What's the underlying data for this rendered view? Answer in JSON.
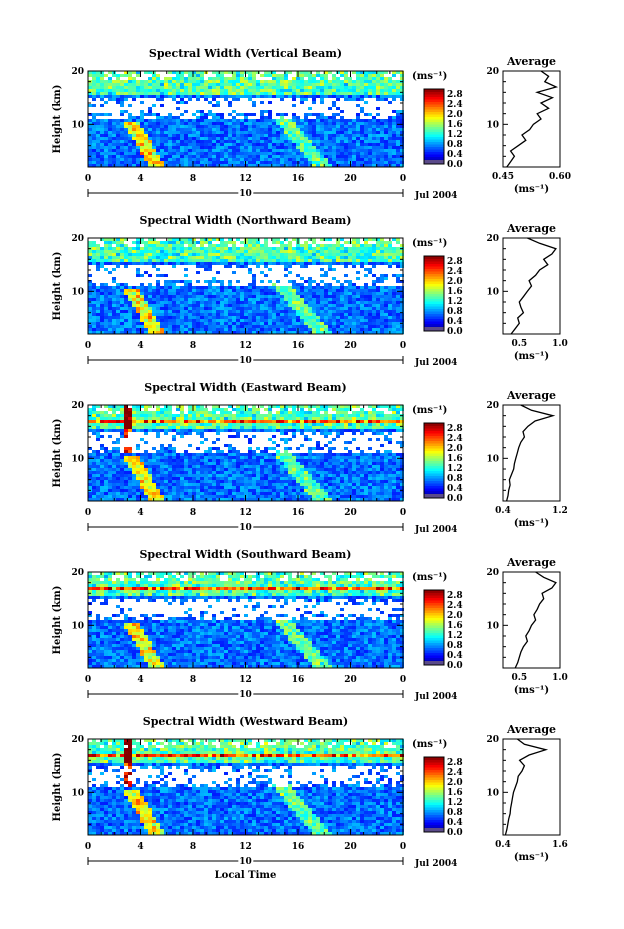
{
  "shared": {
    "ylabel": "Height (km)",
    "xlabel": "Local Time",
    "day_label": "10",
    "date_label": "Jul 2004",
    "units_label": "(ms⁻¹)",
    "avg_title": "Average",
    "avg_xlabel": "(ms⁻¹)",
    "x_ticks": [
      "0",
      "4",
      "8",
      "12",
      "16",
      "20",
      "0"
    ],
    "y_ticks": [
      "10",
      "20"
    ],
    "colorbar_ticks": [
      "0.0",
      "0.4",
      "0.8",
      "1.2",
      "1.6",
      "2.0",
      "2.4",
      "2.8"
    ]
  },
  "chart_data": [
    {
      "type": "heatmap",
      "title": "Spectral Width (Vertical Beam)",
      "x_range_hours": [
        0,
        24
      ],
      "y_range_km": [
        2,
        20
      ],
      "color_range": [
        0.0,
        3.0
      ],
      "avg_xlim": [
        0.45,
        0.6
      ],
      "avg_ticks": [
        "0.45",
        "0.60"
      ],
      "avg_profile": {
        "height_km": [
          2,
          3,
          4,
          5,
          6,
          7,
          8,
          9,
          10,
          11,
          12,
          13,
          14,
          15,
          16,
          17,
          18,
          19,
          20
        ],
        "value": [
          0.46,
          0.47,
          0.48,
          0.47,
          0.49,
          0.51,
          0.5,
          0.52,
          0.53,
          0.55,
          0.54,
          0.57,
          0.55,
          0.58,
          0.54,
          0.59,
          0.56,
          0.57,
          0.55
        ]
      }
    },
    {
      "type": "heatmap",
      "title": "Spectral Width (Northward Beam)",
      "x_range_hours": [
        0,
        24
      ],
      "y_range_km": [
        2,
        20
      ],
      "color_range": [
        0.0,
        3.0
      ],
      "avg_xlim": [
        0.3,
        1.0
      ],
      "avg_ticks": [
        "0.5",
        "1.0"
      ],
      "avg_profile": {
        "height_km": [
          2,
          3,
          4,
          5,
          6,
          7,
          8,
          9,
          10,
          11,
          12,
          13,
          14,
          15,
          16,
          17,
          18,
          19,
          20
        ],
        "value": [
          0.4,
          0.45,
          0.5,
          0.48,
          0.55,
          0.52,
          0.5,
          0.55,
          0.6,
          0.65,
          0.62,
          0.7,
          0.75,
          0.85,
          0.8,
          0.9,
          0.95,
          0.75,
          0.6
        ]
      }
    },
    {
      "type": "heatmap",
      "title": "Spectral Width (Eastward Beam)",
      "x_range_hours": [
        0,
        24
      ],
      "y_range_km": [
        2,
        20
      ],
      "color_range": [
        0.0,
        3.0
      ],
      "avg_xlim": [
        0.4,
        1.2
      ],
      "avg_ticks": [
        "0.4",
        "1.2"
      ],
      "avg_profile": {
        "height_km": [
          2,
          3,
          4,
          5,
          6,
          7,
          8,
          9,
          10,
          11,
          12,
          13,
          14,
          15,
          16,
          17,
          18,
          19,
          20
        ],
        "value": [
          0.45,
          0.47,
          0.48,
          0.5,
          0.49,
          0.52,
          0.55,
          0.56,
          0.58,
          0.6,
          0.62,
          0.65,
          0.7,
          0.68,
          0.75,
          0.85,
          1.1,
          0.8,
          0.65
        ]
      }
    },
    {
      "type": "heatmap",
      "title": "Spectral Width (Southward Beam)",
      "x_range_hours": [
        0,
        24
      ],
      "y_range_km": [
        2,
        20
      ],
      "color_range": [
        0.0,
        3.0
      ],
      "avg_xlim": [
        0.3,
        1.0
      ],
      "avg_ticks": [
        "0.5",
        "1.0"
      ],
      "avg_profile": {
        "height_km": [
          2,
          3,
          4,
          5,
          6,
          7,
          8,
          9,
          10,
          11,
          12,
          13,
          14,
          15,
          16,
          17,
          18,
          19,
          20
        ],
        "value": [
          0.45,
          0.48,
          0.5,
          0.52,
          0.55,
          0.6,
          0.58,
          0.62,
          0.65,
          0.7,
          0.68,
          0.72,
          0.75,
          0.8,
          0.78,
          0.9,
          0.95,
          0.8,
          0.7
        ]
      }
    },
    {
      "type": "heatmap",
      "title": "Spectral Width (Westward Beam)",
      "x_range_hours": [
        0,
        24
      ],
      "y_range_km": [
        2,
        20
      ],
      "color_range": [
        0.0,
        3.0
      ],
      "avg_xlim": [
        0.4,
        1.6
      ],
      "avg_ticks": [
        "0.4",
        "1.6"
      ],
      "avg_profile": {
        "height_km": [
          2,
          3,
          4,
          5,
          6,
          7,
          8,
          9,
          10,
          11,
          12,
          13,
          14,
          15,
          16,
          17,
          18,
          19,
          20
        ],
        "value": [
          0.45,
          0.48,
          0.5,
          0.52,
          0.55,
          0.56,
          0.58,
          0.6,
          0.62,
          0.66,
          0.7,
          0.72,
          0.8,
          0.85,
          0.75,
          0.95,
          1.3,
          0.85,
          0.7
        ]
      }
    }
  ]
}
